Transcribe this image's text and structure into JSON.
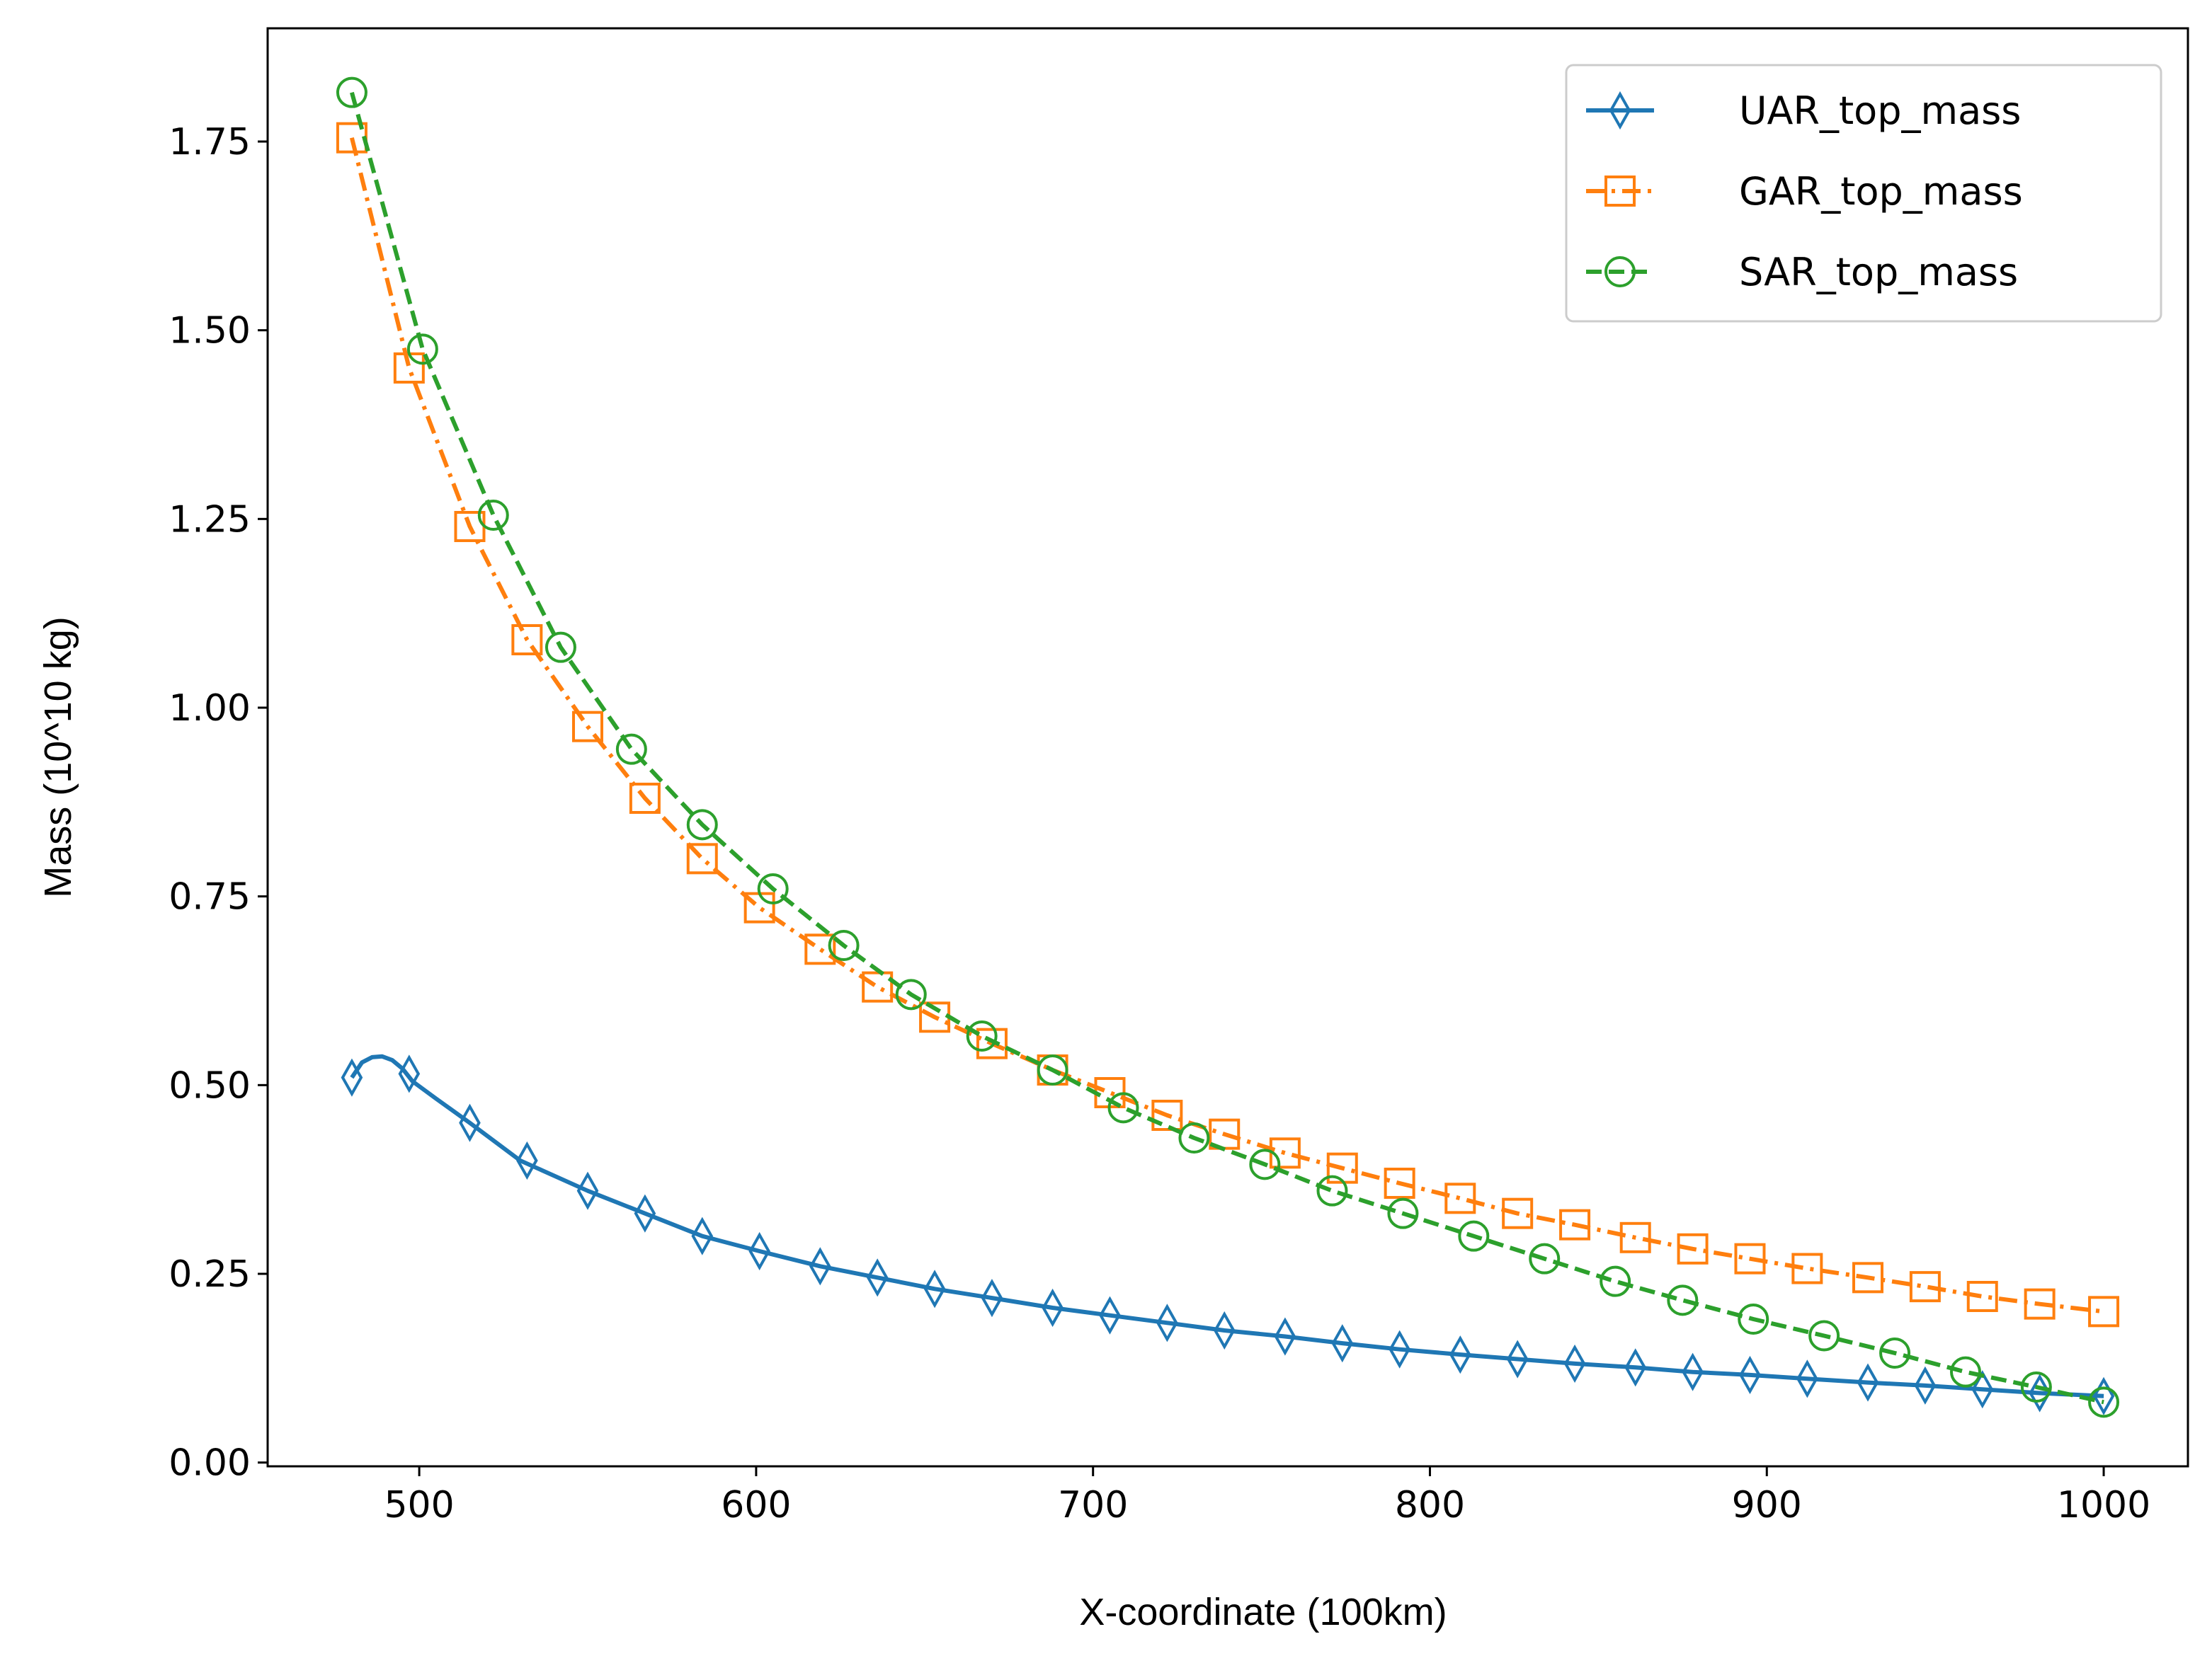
{
  "chart_data": {
    "type": "line",
    "title": "",
    "xlabel": "X-coordinate (100km)",
    "ylabel": "Mass (10^10 kg)",
    "xlim": [
      455,
      1025
    ],
    "ylim": [
      -0.005,
      1.9
    ],
    "xticks": [
      500,
      600,
      700,
      800,
      900,
      1000
    ],
    "yticks": [
      0.0,
      0.25,
      0.5,
      0.75,
      1.0,
      1.25,
      1.5,
      1.75
    ],
    "xtick_labels": [
      "500",
      "600",
      "700",
      "800",
      "900",
      "1000"
    ],
    "ytick_labels": [
      "0.00",
      "0.25",
      "0.50",
      "0.75",
      "1.00",
      "1.25",
      "1.50",
      "1.75"
    ],
    "legend_position": "top-right",
    "series": [
      {
        "name": "UAR_top_mass",
        "color": "#1f77b4",
        "line_style": "solid",
        "marker": "thin-diamond",
        "curve_x": [
          480,
          483,
          486,
          489,
          492,
          495,
          498,
          505,
          515,
          530,
          550,
          567,
          584,
          601,
          619,
          636,
          653,
          670,
          688,
          705,
          722,
          739,
          757,
          774,
          791,
          809,
          826,
          843,
          861,
          878,
          895,
          912,
          930,
          947,
          964,
          981,
          1000
        ],
        "curve_y": [
          0.51,
          0.53,
          0.537,
          0.538,
          0.533,
          0.522,
          0.505,
          0.482,
          0.45,
          0.4,
          0.36,
          0.33,
          0.3,
          0.28,
          0.26,
          0.245,
          0.23,
          0.218,
          0.205,
          0.195,
          0.185,
          0.175,
          0.167,
          0.158,
          0.15,
          0.143,
          0.137,
          0.131,
          0.126,
          0.12,
          0.116,
          0.111,
          0.106,
          0.102,
          0.097,
          0.092,
          0.088
        ],
        "marker_x": [
          480,
          497,
          515,
          532,
          550,
          567,
          584,
          601,
          619,
          636,
          653,
          670,
          688,
          705,
          722,
          739,
          757,
          774,
          791,
          809,
          826,
          843,
          861,
          878,
          895,
          912,
          930,
          947,
          964,
          981,
          1000
        ],
        "marker_y": [
          0.51,
          0.515,
          0.45,
          0.4,
          0.36,
          0.33,
          0.3,
          0.28,
          0.26,
          0.245,
          0.23,
          0.218,
          0.205,
          0.195,
          0.185,
          0.175,
          0.167,
          0.158,
          0.15,
          0.143,
          0.137,
          0.131,
          0.126,
          0.12,
          0.116,
          0.111,
          0.106,
          0.102,
          0.097,
          0.092,
          0.088
        ]
      },
      {
        "name": "GAR_top_mass",
        "color": "#ff7f0e",
        "line_style": "dashdot",
        "marker": "square",
        "marker_x": [
          480,
          497,
          515,
          532,
          550,
          567,
          584,
          601,
          619,
          636,
          653,
          670,
          688,
          705,
          722,
          739,
          757,
          774,
          791,
          809,
          826,
          843,
          861,
          878,
          895,
          912,
          930,
          947,
          964,
          981,
          1000
        ],
        "marker_y": [
          1.755,
          1.45,
          1.24,
          1.09,
          0.975,
          0.88,
          0.8,
          0.735,
          0.68,
          0.63,
          0.59,
          0.555,
          0.52,
          0.49,
          0.46,
          0.435,
          0.41,
          0.39,
          0.37,
          0.35,
          0.33,
          0.315,
          0.298,
          0.283,
          0.27,
          0.257,
          0.245,
          0.233,
          0.22,
          0.21,
          0.2
        ]
      },
      {
        "name": "SAR_top_mass",
        "color": "#2ca02c",
        "line_style": "dashed",
        "marker": "circle",
        "marker_x": [
          480,
          501,
          522,
          542,
          563,
          584,
          605,
          626,
          646,
          667,
          688,
          709,
          730,
          751,
          771,
          792,
          813,
          834,
          855,
          875,
          896,
          917,
          938,
          959,
          980,
          1000
        ],
        "marker_y": [
          1.815,
          1.475,
          1.255,
          1.08,
          0.945,
          0.845,
          0.76,
          0.685,
          0.62,
          0.565,
          0.52,
          0.47,
          0.43,
          0.395,
          0.36,
          0.33,
          0.3,
          0.27,
          0.24,
          0.215,
          0.19,
          0.168,
          0.145,
          0.12,
          0.1,
          0.08
        ]
      }
    ]
  }
}
